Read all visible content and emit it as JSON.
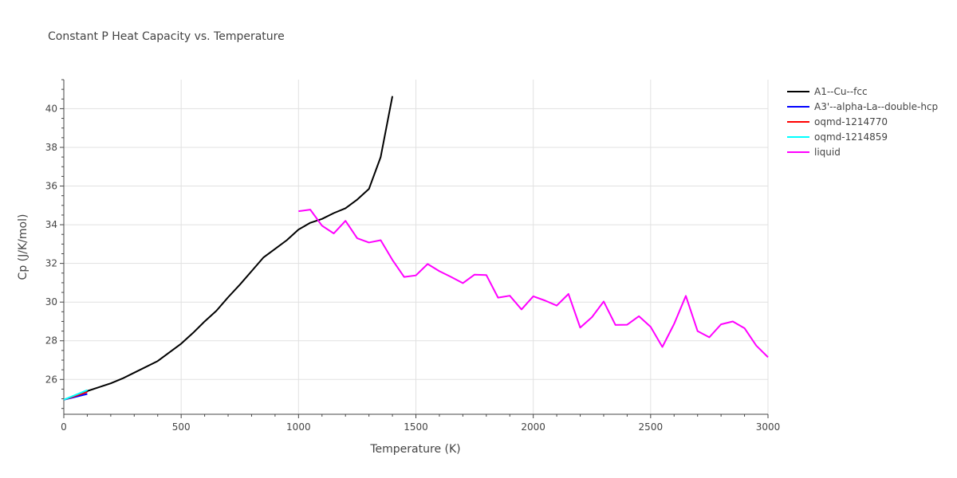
{
  "chart_data": {
    "type": "line",
    "title": "Constant P Heat Capacity vs. Temperature",
    "xlabel": "Temperature (K)",
    "ylabel": "Cp (J/K/mol)",
    "xlim": [
      0,
      3000
    ],
    "ylim": [
      24.2,
      41.5
    ],
    "xticks": [
      0,
      500,
      1000,
      1500,
      2000,
      2500,
      3000
    ],
    "xtick_labels": [
      "0",
      "500",
      "1000",
      "1500",
      "2000",
      "2500",
      "3000"
    ],
    "yticks": [
      26,
      28,
      30,
      32,
      34,
      36,
      38,
      40
    ],
    "ytick_labels": [
      "26",
      "28",
      "30",
      "32",
      "34",
      "36",
      "38",
      "40"
    ],
    "grid": true,
    "legend_position": "right",
    "series": [
      {
        "name": "A1--Cu--fcc",
        "color": "#000000",
        "x": [
          0,
          100,
          200,
          250,
          300,
          400,
          500,
          550,
          600,
          650,
          700,
          750,
          800,
          850,
          900,
          950,
          1000,
          1050,
          1100,
          1150,
          1200,
          1250,
          1300,
          1350,
          1400
        ],
        "y": [
          24.95,
          25.4,
          25.8,
          26.05,
          26.35,
          26.95,
          27.85,
          28.4,
          29.0,
          29.55,
          30.25,
          30.9,
          31.6,
          32.3,
          32.75,
          33.2,
          33.75,
          34.1,
          34.3,
          34.6,
          34.85,
          35.3,
          35.85,
          37.5,
          40.65
        ]
      },
      {
        "name": "A3'--alpha-La--double-hcp",
        "color": "#0000ff",
        "x": [
          0,
          100
        ],
        "y": [
          24.95,
          25.25
        ]
      },
      {
        "name": "oqmd-1214770",
        "color": "#ff0000",
        "x": [
          0,
          100
        ],
        "y": [
          24.95,
          25.35
        ]
      },
      {
        "name": "oqmd-1214859",
        "color": "#00ffff",
        "x": [
          0,
          100
        ],
        "y": [
          24.95,
          25.45
        ]
      },
      {
        "name": "liquid",
        "color": "#ff00ff",
        "x": [
          1000,
          1050,
          1100,
          1150,
          1200,
          1250,
          1300,
          1350,
          1400,
          1450,
          1500,
          1550,
          1600,
          1650,
          1700,
          1750,
          1800,
          1850,
          1900,
          1950,
          2000,
          2050,
          2100,
          2150,
          2200,
          2250,
          2300,
          2350,
          2400,
          2450,
          2500,
          2550,
          2600,
          2650,
          2700,
          2750,
          2800,
          2850,
          2900,
          2950,
          3000
        ],
        "y": [
          34.7,
          34.78,
          33.95,
          33.55,
          34.2,
          33.3,
          33.08,
          33.2,
          32.18,
          31.3,
          31.38,
          31.97,
          31.6,
          31.3,
          30.98,
          31.42,
          31.4,
          30.23,
          30.33,
          29.62,
          30.3,
          30.08,
          29.82,
          30.42,
          28.68,
          29.22,
          30.03,
          28.82,
          28.83,
          29.27,
          28.72,
          27.68,
          28.87,
          30.32,
          28.5,
          28.18,
          28.85,
          29.0,
          28.65,
          27.75,
          27.15
        ]
      }
    ]
  }
}
